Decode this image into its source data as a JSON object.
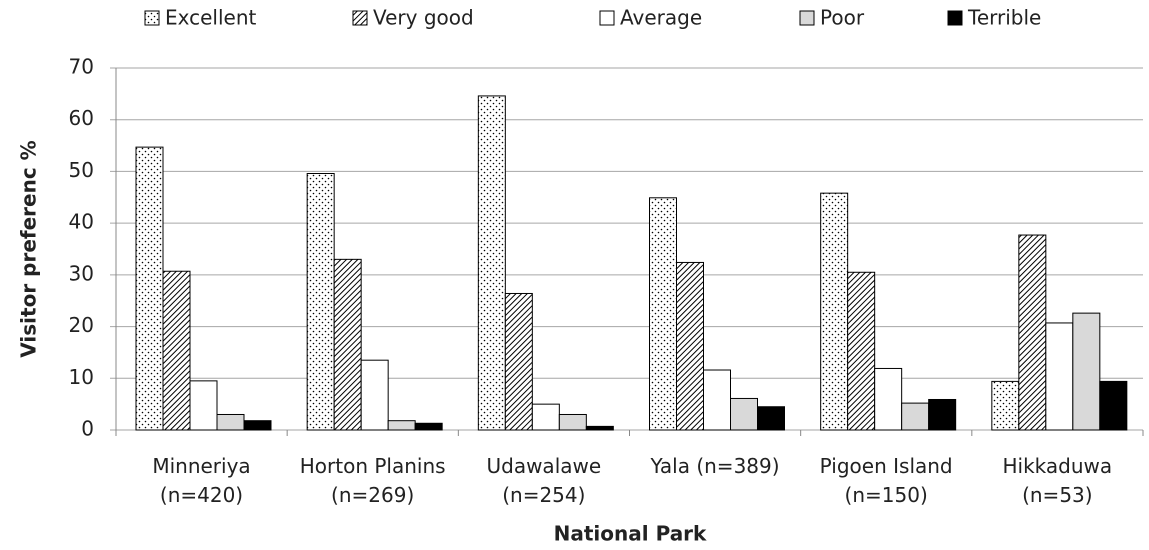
{
  "chart_data": {
    "type": "bar",
    "x_label": "National Park",
    "y_label": "Visitor preferenc %",
    "categories": [
      "Minneriya\n(n=420)",
      "Horton Planins\n(n=269)",
      "Udawalawe\n(n=254)",
      "Yala (n=389)",
      "Pigoen Island\n(n=150)",
      "Hikkaduwa\n(n=53)"
    ],
    "series": [
      {
        "name": "Excellent",
        "color": "#ffffff",
        "pattern": "dots",
        "values": [
          54.7,
          49.6,
          64.6,
          44.9,
          45.8,
          9.4
        ]
      },
      {
        "name": "Very good",
        "color": "#ffffff",
        "pattern": "hatch",
        "values": [
          30.7,
          33.0,
          26.4,
          32.4,
          30.5,
          37.7
        ]
      },
      {
        "name": "Average",
        "color": "#ffffff",
        "values": [
          9.5,
          13.5,
          5.0,
          11.6,
          11.9,
          20.7
        ]
      },
      {
        "name": "Poor",
        "color": "#d9d9d9",
        "values": [
          3.0,
          1.8,
          3.0,
          6.1,
          5.2,
          22.6
        ]
      },
      {
        "name": "Terrible",
        "color": "#000000",
        "values": [
          1.8,
          1.3,
          0.7,
          4.5,
          5.9,
          9.4
        ]
      }
    ],
    "ylim": [
      0,
      70
    ],
    "yticks": [
      0,
      10,
      20,
      30,
      40,
      50,
      60,
      70
    ],
    "grid": true,
    "legend": "top"
  }
}
